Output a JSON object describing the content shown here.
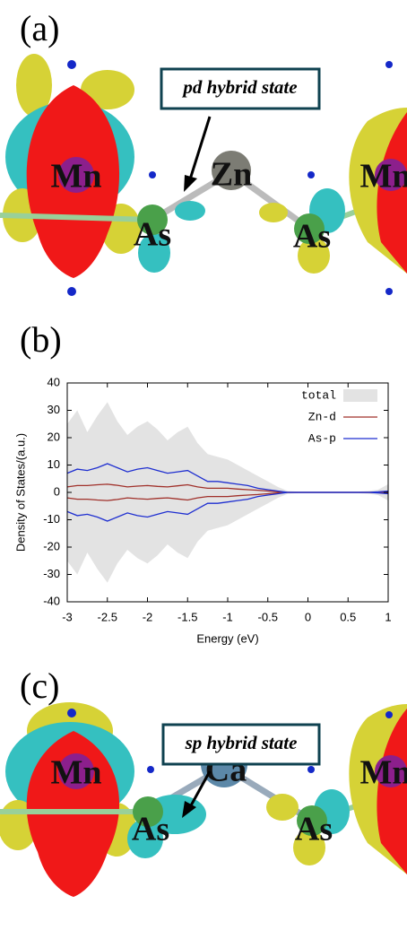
{
  "panel_labels": [
    "(a)",
    "(b)",
    "(c)"
  ],
  "panel_a": {
    "callout": "pd hybrid state",
    "atoms": [
      "Mn",
      "Zn",
      "Mn",
      "As",
      "As"
    ]
  },
  "panel_c": {
    "callout": "sp hybrid state",
    "atoms": [
      "Mn",
      "Ca",
      "Mn",
      "As",
      "As"
    ]
  },
  "chart_data": {
    "type": "line",
    "xlabel": "Energy (eV)",
    "ylabel": "Density of States/(a.u.)",
    "x": [
      -3,
      -2.875,
      -2.75,
      -2.625,
      -2.5,
      -2.375,
      -2.25,
      -2.125,
      -2,
      -1.875,
      -1.75,
      -1.625,
      -1.5,
      -1.375,
      -1.25,
      -1.125,
      -1,
      -0.875,
      -0.75,
      -0.625,
      -0.5,
      -0.375,
      -0.25,
      -0.125,
      0,
      0.125,
      0.25,
      0.375,
      0.5,
      0.625,
      0.75,
      0.875,
      1
    ],
    "series": [
      {
        "name": "total",
        "color": "#e3e3e3",
        "fill": true,
        "values": [
          25,
          30,
          22,
          28,
          33,
          26,
          21,
          24,
          26,
          23,
          19,
          22,
          24,
          18,
          14,
          13,
          12,
          10,
          8,
          6,
          4,
          2,
          0.5,
          0.3,
          0.3,
          0.3,
          0.3,
          0.3,
          0.3,
          0.3,
          0.5,
          1,
          3
        ],
        "values_down": [
          -25,
          -30,
          -22,
          -28,
          -33,
          -26,
          -21,
          -24,
          -26,
          -23,
          -19,
          -22,
          -24,
          -18,
          -14,
          -13,
          -12,
          -10,
          -8,
          -6,
          -4,
          -2,
          -0.5,
          -0.3,
          -0.3,
          -0.3,
          -0.3,
          -0.3,
          -0.3,
          -0.3,
          -0.5,
          -1,
          -3
        ]
      },
      {
        "name": "Zn-d",
        "color": "#a0302a",
        "fill": false,
        "values": [
          2,
          2.5,
          2.5,
          2.8,
          3,
          2.6,
          2,
          2.3,
          2.5,
          2.2,
          2,
          2.4,
          2.8,
          2,
          1.5,
          1.5,
          1.5,
          1.2,
          1,
          0.8,
          0.5,
          0.2,
          0,
          0,
          0,
          0,
          0,
          0,
          0,
          0,
          0,
          0,
          0.2
        ],
        "values_down": [
          -2,
          -2.5,
          -2.5,
          -2.8,
          -3,
          -2.6,
          -2,
          -2.3,
          -2.5,
          -2.2,
          -2,
          -2.4,
          -2.8,
          -2,
          -1.5,
          -1.5,
          -1.5,
          -1.2,
          -1,
          -0.8,
          -0.5,
          -0.2,
          0,
          0,
          0,
          0,
          0,
          0,
          0,
          0,
          0,
          0,
          -0.2
        ]
      },
      {
        "name": "As-p",
        "color": "#1f2fd0",
        "fill": false,
        "values": [
          7,
          8.5,
          8,
          9,
          10.5,
          9,
          7.5,
          8.5,
          9,
          8,
          7,
          7.5,
          8,
          6,
          4,
          4,
          3.5,
          3,
          2.5,
          1.5,
          1,
          0.5,
          0,
          0,
          0,
          0,
          0,
          0,
          0,
          0,
          0,
          0.2,
          0.5
        ],
        "values_down": [
          -7,
          -8.5,
          -8,
          -9,
          -10.5,
          -9,
          -7.5,
          -8.5,
          -9,
          -8,
          -7,
          -7.5,
          -8,
          -6,
          -4,
          -4,
          -3.5,
          -3,
          -2.5,
          -1.5,
          -1,
          -0.5,
          0,
          0,
          0,
          0,
          0,
          0,
          0,
          0,
          0,
          -0.2,
          -0.5
        ]
      }
    ],
    "xlim": [
      -3,
      1
    ],
    "ylim": [
      -40,
      40
    ],
    "xticks": [
      -3,
      -2.5,
      -2,
      -1.5,
      -1,
      -0.5,
      0,
      0.5,
      1
    ],
    "yticks": [
      -40,
      -30,
      -20,
      -10,
      0,
      10,
      20,
      30,
      40
    ],
    "legend": "upper right"
  }
}
